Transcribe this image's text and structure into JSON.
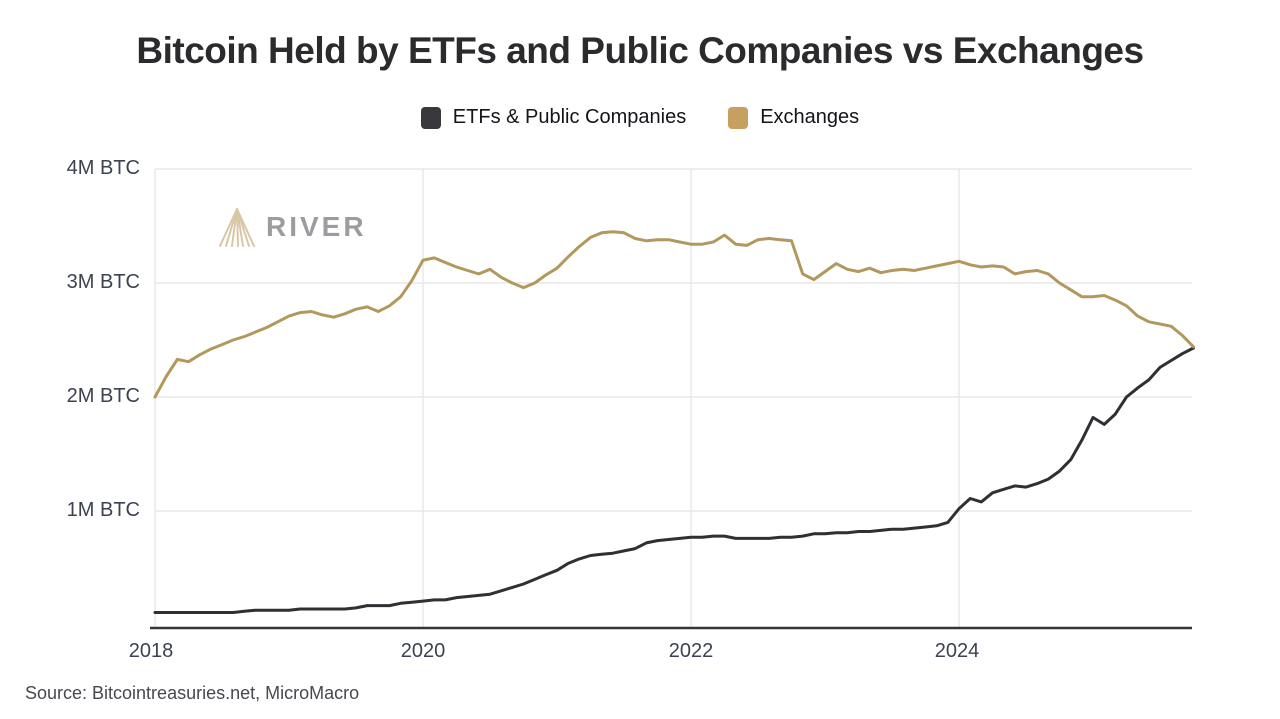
{
  "header": {
    "title": "Bitcoin Held by ETFs and Public Companies vs Exchanges"
  },
  "legend": [
    {
      "label": "ETFs & Public Companies",
      "color": "#38383d"
    },
    {
      "label": "Exchanges",
      "color": "#c5a05e"
    }
  ],
  "watermark": {
    "text": "RIVER",
    "icon": "river-delta-fan-icon",
    "icon_color": "#d8c7a6"
  },
  "footer": {
    "source": "Source: Bitcointreasuries.net, MicroMacro"
  },
  "chart_data": {
    "type": "line",
    "title": "Bitcoin Held by ETFs and Public Companies vs Exchanges",
    "unit": "BTC",
    "grid": true,
    "legend_position": "top-center",
    "x_start": "2018-01",
    "x_interval_months": 1,
    "x_end": "2025-10",
    "xtick_labels": [
      "2018",
      "2020",
      "2022",
      "2024"
    ],
    "xtick_years": [
      2018,
      2020,
      2022,
      2024
    ],
    "ytick_labels": [
      "4M BTC",
      "3M BTC",
      "2M BTC",
      "1M BTC"
    ],
    "ytick_m": [
      4,
      3,
      2,
      1
    ],
    "ylim_m": [
      0,
      4
    ],
    "colors": {
      "grid": "#e8e8ea",
      "axis": "#35353a",
      "tick_text": "#3c4250"
    },
    "series": [
      {
        "name": "ETFs & Public Companies",
        "color": "#2f2f34",
        "values_m_btc": [
          0.11,
          0.11,
          0.11,
          0.11,
          0.11,
          0.11,
          0.11,
          0.11,
          0.12,
          0.13,
          0.13,
          0.13,
          0.13,
          0.14,
          0.14,
          0.14,
          0.14,
          0.14,
          0.15,
          0.17,
          0.17,
          0.17,
          0.19,
          0.2,
          0.21,
          0.22,
          0.22,
          0.24,
          0.25,
          0.26,
          0.27,
          0.3,
          0.33,
          0.36,
          0.4,
          0.44,
          0.48,
          0.54,
          0.58,
          0.61,
          0.62,
          0.63,
          0.65,
          0.67,
          0.72,
          0.74,
          0.75,
          0.76,
          0.77,
          0.77,
          0.78,
          0.78,
          0.76,
          0.76,
          0.76,
          0.76,
          0.77,
          0.77,
          0.78,
          0.8,
          0.8,
          0.81,
          0.81,
          0.82,
          0.82,
          0.83,
          0.84,
          0.84,
          0.85,
          0.86,
          0.87,
          0.9,
          1.02,
          1.11,
          1.08,
          1.16,
          1.19,
          1.22,
          1.21,
          1.24,
          1.28,
          1.35,
          1.45,
          1.62,
          1.82,
          1.76,
          1.85,
          2.0,
          2.08,
          2.15,
          2.26,
          2.32,
          2.38,
          2.43
        ]
      },
      {
        "name": "Exchanges",
        "color": "#b3985e",
        "values_m_btc": [
          2.0,
          2.18,
          2.33,
          2.31,
          2.37,
          2.42,
          2.46,
          2.5,
          2.53,
          2.57,
          2.61,
          2.66,
          2.71,
          2.74,
          2.75,
          2.72,
          2.7,
          2.73,
          2.77,
          2.79,
          2.75,
          2.8,
          2.88,
          3.02,
          3.2,
          3.22,
          3.18,
          3.14,
          3.11,
          3.08,
          3.12,
          3.05,
          3.0,
          2.96,
          3.0,
          3.07,
          3.13,
          3.23,
          3.32,
          3.4,
          3.44,
          3.45,
          3.44,
          3.39,
          3.37,
          3.38,
          3.38,
          3.36,
          3.34,
          3.34,
          3.36,
          3.42,
          3.34,
          3.33,
          3.38,
          3.39,
          3.38,
          3.37,
          3.08,
          3.03,
          3.1,
          3.17,
          3.12,
          3.1,
          3.13,
          3.09,
          3.11,
          3.12,
          3.11,
          3.13,
          3.15,
          3.17,
          3.19,
          3.16,
          3.14,
          3.15,
          3.14,
          3.08,
          3.1,
          3.11,
          3.08,
          3.0,
          2.94,
          2.88,
          2.88,
          2.89,
          2.85,
          2.8,
          2.71,
          2.66,
          2.64,
          2.62,
          2.54,
          2.44
        ]
      }
    ]
  }
}
